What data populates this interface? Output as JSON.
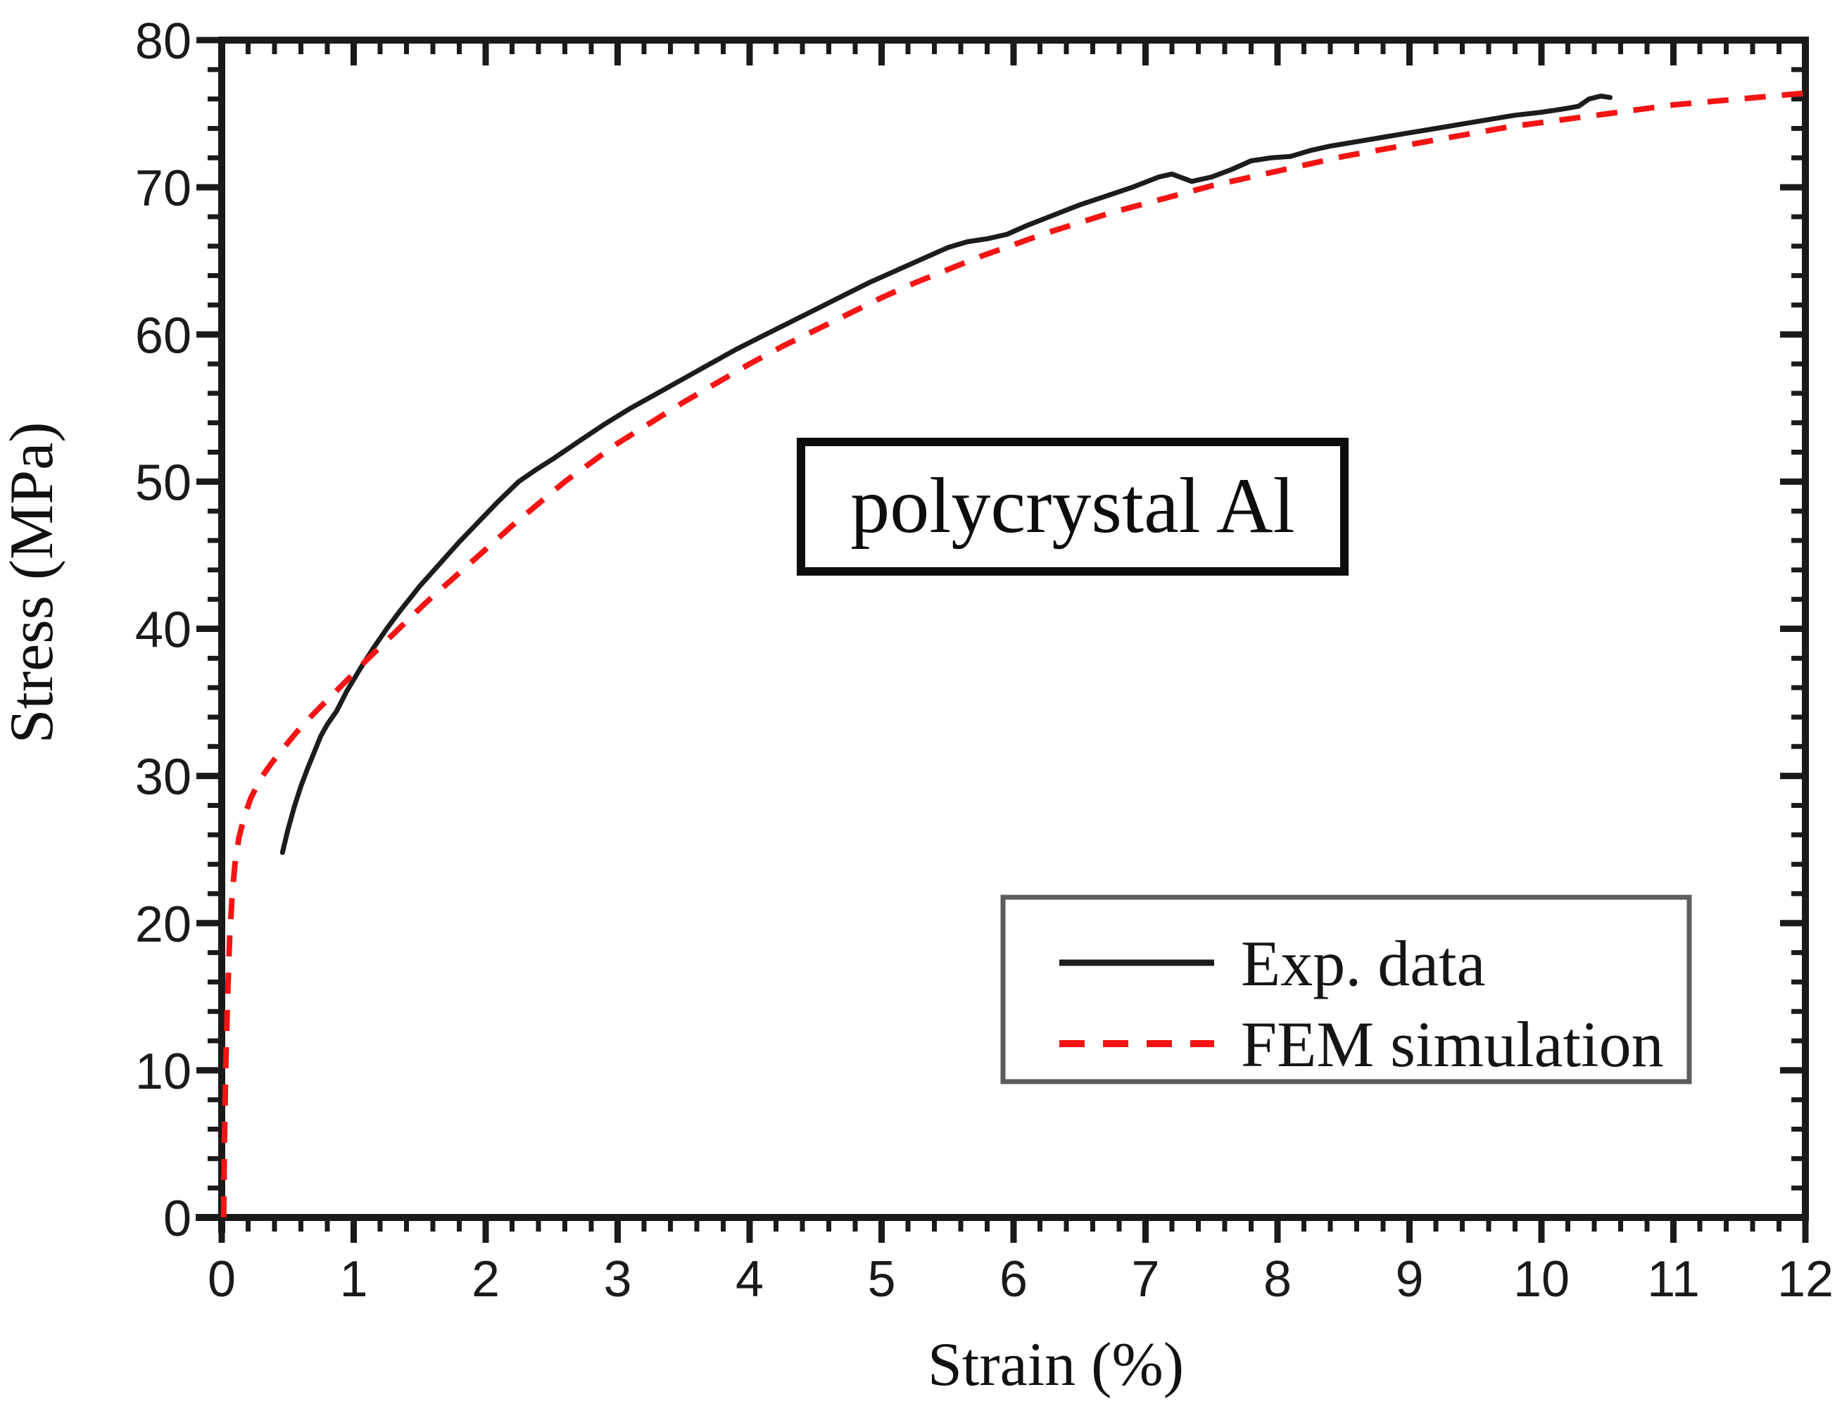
{
  "chart_data": {
    "type": "line",
    "annotation": "polycrystal Al",
    "xlabel": "Strain (%)",
    "ylabel": "Stress (MPa)",
    "xlim": [
      0,
      12
    ],
    "ylim": [
      0,
      80
    ],
    "x_major_step": 1,
    "x_minor_step": 0.2,
    "y_major_step": 10,
    "y_minor_step": 2,
    "x_tick_labels": [
      "0",
      "1",
      "2",
      "3",
      "4",
      "5",
      "6",
      "7",
      "8",
      "9",
      "10",
      "11",
      "12"
    ],
    "y_tick_labels": [
      "0",
      "10",
      "20",
      "30",
      "40",
      "50",
      "60",
      "70",
      "80"
    ],
    "grid": false,
    "legend_position": "bottom-right",
    "colors": {
      "axis": "#1a1a1a",
      "exp": "#1c1c1c",
      "fem": "#f51414",
      "legend_border": "#5c5c5c",
      "annotation_border": "#0d0d0d",
      "background": "#ffffff"
    },
    "series": [
      {
        "name": "Exp. data",
        "line": "solid",
        "color": "#1c1c1c",
        "points": [
          [
            0.46,
            24.8
          ],
          [
            0.5,
            26.3
          ],
          [
            0.55,
            27.9
          ],
          [
            0.6,
            29.3
          ],
          [
            0.65,
            30.5
          ],
          [
            0.7,
            31.6
          ],
          [
            0.75,
            32.7
          ],
          [
            0.8,
            33.5
          ],
          [
            0.87,
            34.4
          ],
          [
            0.95,
            35.8
          ],
          [
            1.05,
            37.3
          ],
          [
            1.15,
            38.7
          ],
          [
            1.25,
            40.0
          ],
          [
            1.35,
            41.2
          ],
          [
            1.5,
            42.9
          ],
          [
            1.65,
            44.4
          ],
          [
            1.8,
            45.9
          ],
          [
            1.95,
            47.3
          ],
          [
            2.1,
            48.7
          ],
          [
            2.25,
            50.0
          ],
          [
            2.38,
            50.8
          ],
          [
            2.52,
            51.6
          ],
          [
            2.7,
            52.7
          ],
          [
            2.9,
            53.9
          ],
          [
            3.1,
            55.0
          ],
          [
            3.3,
            56.0
          ],
          [
            3.5,
            57.0
          ],
          [
            3.7,
            58.0
          ],
          [
            3.9,
            59.0
          ],
          [
            4.1,
            59.9
          ],
          [
            4.3,
            60.8
          ],
          [
            4.5,
            61.7
          ],
          [
            4.7,
            62.6
          ],
          [
            4.9,
            63.5
          ],
          [
            5.1,
            64.3
          ],
          [
            5.3,
            65.1
          ],
          [
            5.5,
            65.9
          ],
          [
            5.65,
            66.3
          ],
          [
            5.8,
            66.5
          ],
          [
            5.95,
            66.8
          ],
          [
            6.1,
            67.4
          ],
          [
            6.3,
            68.1
          ],
          [
            6.5,
            68.8
          ],
          [
            6.7,
            69.4
          ],
          [
            6.9,
            70.0
          ],
          [
            7.1,
            70.7
          ],
          [
            7.2,
            70.9
          ],
          [
            7.35,
            70.4
          ],
          [
            7.5,
            70.7
          ],
          [
            7.65,
            71.2
          ],
          [
            7.8,
            71.8
          ],
          [
            7.95,
            72.0
          ],
          [
            8.1,
            72.1
          ],
          [
            8.25,
            72.5
          ],
          [
            8.4,
            72.8
          ],
          [
            8.6,
            73.1
          ],
          [
            8.8,
            73.4
          ],
          [
            9.0,
            73.7
          ],
          [
            9.2,
            74.0
          ],
          [
            9.4,
            74.3
          ],
          [
            9.6,
            74.6
          ],
          [
            9.8,
            74.9
          ],
          [
            10.0,
            75.1
          ],
          [
            10.15,
            75.3
          ],
          [
            10.28,
            75.5
          ],
          [
            10.36,
            76.0
          ],
          [
            10.45,
            76.2
          ],
          [
            10.52,
            76.1
          ]
        ]
      },
      {
        "name": "FEM simulation",
        "line": "dashed",
        "color": "#f51414",
        "points": [
          [
            0.015,
            0
          ],
          [
            0.02,
            5.0
          ],
          [
            0.03,
            10.0
          ],
          [
            0.045,
            15.0
          ],
          [
            0.06,
            19.0
          ],
          [
            0.08,
            22.0
          ],
          [
            0.1,
            24.0
          ],
          [
            0.13,
            25.8
          ],
          [
            0.17,
            27.2
          ],
          [
            0.22,
            28.5
          ],
          [
            0.3,
            29.9
          ],
          [
            0.38,
            30.9
          ],
          [
            0.46,
            31.8
          ],
          [
            0.56,
            32.9
          ],
          [
            0.66,
            33.9
          ],
          [
            0.76,
            34.8
          ],
          [
            0.86,
            35.7
          ],
          [
            0.96,
            36.6
          ],
          [
            1.1,
            37.9
          ],
          [
            1.25,
            39.2
          ],
          [
            1.4,
            40.5
          ],
          [
            1.55,
            41.8
          ],
          [
            1.7,
            43.0
          ],
          [
            1.85,
            44.2
          ],
          [
            2.0,
            45.4
          ],
          [
            2.2,
            47.0
          ],
          [
            2.4,
            48.5
          ],
          [
            2.6,
            50.0
          ],
          [
            2.8,
            51.3
          ],
          [
            3.0,
            52.6
          ],
          [
            3.25,
            54.0
          ],
          [
            3.5,
            55.4
          ],
          [
            3.75,
            56.7
          ],
          [
            4.0,
            58.0
          ],
          [
            4.25,
            59.2
          ],
          [
            4.5,
            60.3
          ],
          [
            4.75,
            61.4
          ],
          [
            5.0,
            62.5
          ],
          [
            5.25,
            63.5
          ],
          [
            5.5,
            64.4
          ],
          [
            5.75,
            65.3
          ],
          [
            6.0,
            66.1
          ],
          [
            6.25,
            66.9
          ],
          [
            6.5,
            67.6
          ],
          [
            6.75,
            68.3
          ],
          [
            7.0,
            68.9
          ],
          [
            7.25,
            69.5
          ],
          [
            7.5,
            70.1
          ],
          [
            7.75,
            70.6
          ],
          [
            8.0,
            71.1
          ],
          [
            8.25,
            71.6
          ],
          [
            8.5,
            72.1
          ],
          [
            8.75,
            72.5
          ],
          [
            9.0,
            72.9
          ],
          [
            9.25,
            73.3
          ],
          [
            9.5,
            73.7
          ],
          [
            9.75,
            74.1
          ],
          [
            10.0,
            74.4
          ],
          [
            10.25,
            74.7
          ],
          [
            10.5,
            75.0
          ],
          [
            10.75,
            75.3
          ],
          [
            11.0,
            75.6
          ],
          [
            11.25,
            75.8
          ],
          [
            11.5,
            76.0
          ],
          [
            11.75,
            76.2
          ],
          [
            12.0,
            76.4
          ]
        ]
      }
    ],
    "legend": {
      "entries": [
        {
          "label": "Exp. data",
          "style": "solid",
          "color": "#1c1c1c"
        },
        {
          "label": "FEM simulation",
          "style": "dashed",
          "color": "#f51414"
        }
      ]
    }
  }
}
